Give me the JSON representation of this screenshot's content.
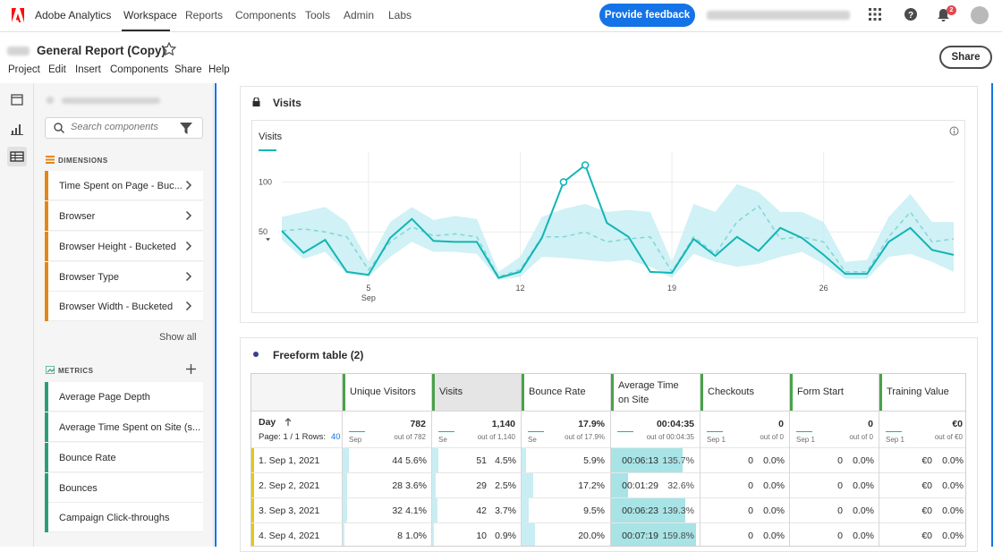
{
  "topbar": {
    "brand": "Adobe Analytics",
    "nav": [
      "Workspace",
      "Reports",
      "Components",
      "Tools",
      "Admin",
      "Labs"
    ],
    "feedback_label": "Provide feedback",
    "notification_count": "2"
  },
  "project": {
    "title": "General Report (Copy)",
    "menu": [
      "Project",
      "Edit",
      "Insert",
      "Components",
      "Share",
      "Help"
    ],
    "share_label": "Share"
  },
  "panel": {
    "search_placeholder": "Search components",
    "dimensions_header": "DIMENSIONS",
    "dimensions": [
      "Time Spent on Page - Buc...",
      "Browser",
      "Browser Height - Bucketed",
      "Browser Type",
      "Browser Width - Bucketed"
    ],
    "show_all": "Show all",
    "metrics_header": "METRICS",
    "metrics": [
      "Average Page Depth",
      "Average Time Spent on Site (s...",
      "Bounce Rate",
      "Bounces",
      "Campaign Click-throughs"
    ]
  },
  "visits_panel": {
    "title": "Visits",
    "legend": "Visits"
  },
  "chart_data": {
    "type": "line",
    "title": "Visits",
    "x_tick_labels": [
      "5",
      "12",
      "19",
      "26"
    ],
    "x_tick_sub": "Sep",
    "y_tick_labels": [
      "100",
      "50"
    ],
    "ylim": [
      0,
      130
    ],
    "series": [
      {
        "name": "Visits",
        "values": [
          51,
          29,
          42,
          10,
          7,
          44,
          63,
          41,
          40,
          40,
          4,
          10,
          44,
          100,
          117,
          59,
          45,
          10,
          9,
          43,
          26,
          45,
          31,
          54,
          44,
          27,
          8,
          8,
          40,
          54,
          32,
          27
        ]
      },
      {
        "name": "",
        "values": [
          51,
          53,
          50,
          45,
          12,
          40,
          55,
          46,
          48,
          45,
          5,
          12,
          45,
          45,
          50,
          40,
          43,
          45,
          10,
          45,
          28,
          60,
          76,
          43,
          45,
          40,
          10,
          10,
          45,
          70,
          40,
          43
        ]
      }
    ],
    "band_upper": [
      65,
      70,
      75,
      60,
      20,
      60,
      75,
      62,
      66,
      63,
      10,
      25,
      65,
      73,
      78,
      70,
      72,
      70,
      20,
      78,
      70,
      98,
      90,
      70,
      70,
      60,
      20,
      22,
      65,
      88,
      60,
      60
    ],
    "band_lower": [
      42,
      23,
      30,
      8,
      5,
      25,
      40,
      30,
      30,
      28,
      2,
      5,
      25,
      24,
      22,
      20,
      22,
      15,
      4,
      28,
      20,
      15,
      18,
      25,
      30,
      18,
      3,
      3,
      25,
      28,
      20,
      10
    ],
    "highlight_points": [
      13,
      14
    ]
  },
  "freeform": {
    "title": "Freeform table (2)",
    "row_header": "Day",
    "page_info": "Page: 1 / 1  Rows:",
    "rows_count": "40",
    "columns": [
      {
        "label": "Unique Visitors",
        "total": "782",
        "sub": "out of 782",
        "spark": "Sep"
      },
      {
        "label": "Visits",
        "total": "1,140",
        "sub": "out of 1,140",
        "spark": "Se"
      },
      {
        "label": "Bounce Rate",
        "total": "17.9%",
        "sub": "out of 17.9%",
        "spark": "Se"
      },
      {
        "label": "Average Time on Site",
        "total": "00:04:35",
        "sub": "out of 00:04:35",
        "spark": ""
      },
      {
        "label": "Checkouts",
        "total": "0",
        "sub": "out of 0",
        "spark": "Sep 1"
      },
      {
        "label": "Form Start",
        "total": "0",
        "sub": "out of 0",
        "spark": "Sep 1"
      },
      {
        "label": "Training Value",
        "total": "€0",
        "sub": "out of €0",
        "spark": "Sep 1"
      }
    ],
    "rows": [
      {
        "day": "1.  Sep 1, 2021",
        "uv": "44",
        "uvp": "5.6%",
        "v": "51",
        "vp": "4.5%",
        "br": "5.9%",
        "ats": "00:06:13",
        "atsp": "135.7%",
        "c": "0",
        "cp": "0.0%",
        "f": "0",
        "fp": "0.0%",
        "t": "€0",
        "tp": "0.0%"
      },
      {
        "day": "2.  Sep 2, 2021",
        "uv": "28",
        "uvp": "3.6%",
        "v": "29",
        "vp": "2.5%",
        "br": "17.2%",
        "ats": "00:01:29",
        "atsp": "32.6%",
        "c": "0",
        "cp": "0.0%",
        "f": "0",
        "fp": "0.0%",
        "t": "€0",
        "tp": "0.0%"
      },
      {
        "day": "3.  Sep 3, 2021",
        "uv": "32",
        "uvp": "4.1%",
        "v": "42",
        "vp": "3.7%",
        "br": "9.5%",
        "ats": "00:06:23",
        "atsp": "139.3%",
        "c": "0",
        "cp": "0.0%",
        "f": "0",
        "fp": "0.0%",
        "t": "€0",
        "tp": "0.0%"
      },
      {
        "day": "4.  Sep 4, 2021",
        "uv": "8",
        "uvp": "1.0%",
        "v": "10",
        "vp": "0.9%",
        "br": "20.0%",
        "ats": "00:07:19",
        "atsp": "159.8%",
        "c": "0",
        "cp": "0.0%",
        "f": "0",
        "fp": "0.0%",
        "t": "€0",
        "tp": "0.0%"
      }
    ]
  },
  "colors": {
    "accent": "#1473e6",
    "line": "#12b5b5",
    "band": "#c8eef3",
    "dimension": "#e68619",
    "metric": "#2d9d78"
  }
}
